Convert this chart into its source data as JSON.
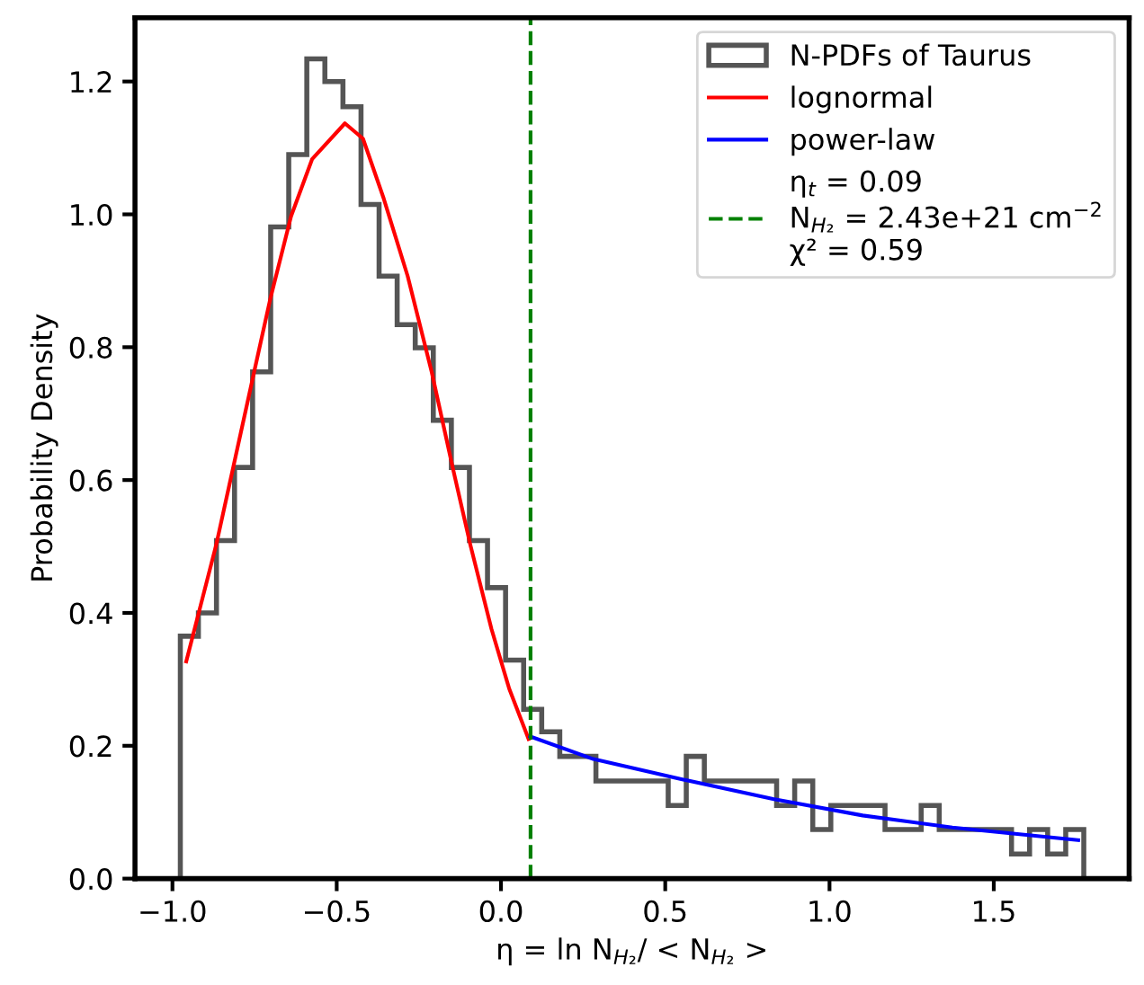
{
  "chart_data": {
    "type": "histogram",
    "xlabel": "η = ln N$_{H₂}$/ < N$_{H₂}$ >",
    "ylabel": "Probability Density",
    "bins": [
      -0.976,
      -0.921,
      -0.866,
      -0.811,
      -0.756,
      -0.701,
      -0.646,
      -0.591,
      -0.536,
      -0.481,
      -0.426,
      -0.371,
      -0.316,
      -0.261,
      -0.206,
      -0.151,
      -0.096,
      -0.041,
      0.014,
      0.069,
      0.124,
      0.179,
      0.234,
      0.289,
      0.344,
      0.399,
      0.454,
      0.509,
      0.564,
      0.619,
      0.674,
      0.729,
      0.784,
      0.839,
      0.894,
      0.949,
      1.004,
      1.059,
      1.114,
      1.169,
      1.224,
      1.279,
      1.334,
      1.389,
      1.444,
      1.499,
      1.554,
      1.609,
      1.664,
      1.719,
      1.774
    ],
    "series": [
      {
        "name": "N-PDFs of Taurus",
        "color": "#555555",
        "values": [
          0.365,
          0.4,
          0.509,
          0.619,
          0.763,
          0.981,
          1.09,
          1.234,
          1.2,
          1.162,
          1.015,
          0.907,
          0.834,
          0.799,
          0.69,
          0.619,
          0.509,
          0.438,
          0.329,
          0.255,
          0.221,
          0.184,
          0.184,
          0.147,
          0.147,
          0.147,
          0.147,
          0.11,
          0.184,
          0.147,
          0.147,
          0.147,
          0.147,
          0.11,
          0.147,
          0.074,
          0.11,
          0.11,
          0.11,
          0.074,
          0.074,
          0.11,
          0.074,
          0.074,
          0.074,
          0.074,
          0.037,
          0.074,
          0.037,
          0.074
        ]
      },
      {
        "name": "lognormal",
        "type": "line",
        "color": "#ff0000",
        "x": [
          -0.958,
          -0.867,
          -0.749,
          -0.703,
          -0.639,
          -0.575,
          -0.475,
          -0.42,
          -0.357,
          -0.284,
          -0.211,
          -0.147,
          -0.093,
          -0.029,
          0.025,
          0.084
        ],
        "values": [
          0.327,
          0.502,
          0.768,
          0.871,
          0.997,
          1.083,
          1.137,
          1.114,
          1.024,
          0.907,
          0.763,
          0.619,
          0.502,
          0.376,
          0.286,
          0.21
        ]
      },
      {
        "name": "power-law",
        "type": "line",
        "color": "#0000ff",
        "x": [
          0.089,
          0.281,
          0.555,
          0.828,
          1.101,
          1.374,
          1.757
        ],
        "values": [
          0.214,
          0.18,
          0.149,
          0.12,
          0.095,
          0.077,
          0.058
        ]
      }
    ],
    "ref_lines": [
      {
        "axis": "x",
        "value": 0.09,
        "label": "η$_{t}$ = 0.09\nN$_{H₂}$ = 2.43e+21 cm$^{−2}$\nχ² = 0.59",
        "color": "#008000",
        "line_style": "dashed"
      }
    ],
    "xlim": [
      -1.114,
      1.912
    ],
    "ylim": [
      0,
      1.296
    ],
    "xticks": [
      {
        "value": -1.0,
        "label": "−1.0"
      },
      {
        "value": -0.5,
        "label": "−0.5"
      },
      {
        "value": 0.0,
        "label": "0.0"
      },
      {
        "value": 0.5,
        "label": "0.5"
      },
      {
        "value": 1.0,
        "label": "1.0"
      },
      {
        "value": 1.5,
        "label": "1.5"
      }
    ],
    "yticks": [
      {
        "value": 0,
        "label": "0.0"
      },
      {
        "value": 0.2,
        "label": "0.2"
      },
      {
        "value": 0.4,
        "label": "0.4"
      },
      {
        "value": 0.6,
        "label": "0.6"
      },
      {
        "value": 0.8,
        "label": "0.8"
      },
      {
        "value": 1.0,
        "label": "1.0"
      },
      {
        "value": 1.2,
        "label": "1.2"
      }
    ],
    "grid": false,
    "legend": "top right"
  }
}
